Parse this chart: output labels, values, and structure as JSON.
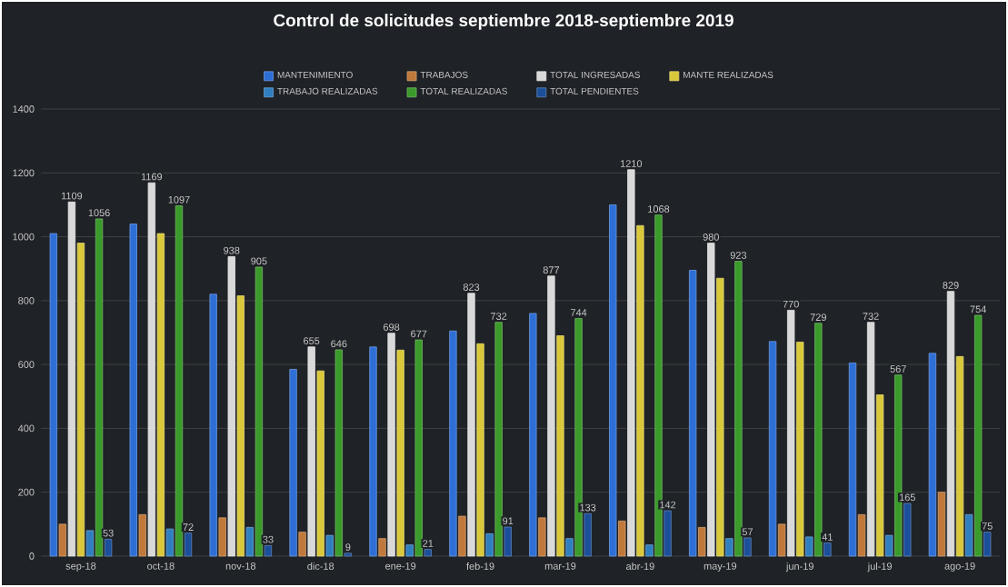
{
  "chart_data": {
    "type": "bar",
    "title": "Control de solicitudes septiembre 2018-septiembre 2019",
    "categories": [
      "sep-18",
      "oct-18",
      "nov-18",
      "dic-18",
      "ene-19",
      "feb-19",
      "mar-19",
      "abr-19",
      "may-19",
      "jun-19",
      "jul-19",
      "ago-19"
    ],
    "series": [
      {
        "name": "MANTENIMIENTO",
        "color": "#2e6fd6",
        "values": [
          1010,
          1040,
          820,
          585,
          655,
          705,
          760,
          1100,
          895,
          672,
          605,
          635
        ]
      },
      {
        "name": "TRABAJOS",
        "color": "#c0793a",
        "values": [
          100,
          130,
          120,
          75,
          55,
          125,
          120,
          110,
          90,
          100,
          130,
          200
        ]
      },
      {
        "name": "TOTAL INGRESADAS",
        "color": "#d9d9d9",
        "values": [
          1109,
          1169,
          938,
          655,
          698,
          823,
          877,
          1210,
          980,
          770,
          732,
          829
        ],
        "value_labels": [
          "1109",
          "1169",
          "938",
          "655",
          "698",
          "823",
          "877",
          "1210",
          "980",
          "770",
          "732",
          "829"
        ]
      },
      {
        "name": "MANTE REALIZADAS",
        "color": "#d9c83a",
        "values": [
          980,
          1010,
          815,
          580,
          645,
          665,
          690,
          1035,
          870,
          670,
          505,
          625
        ]
      },
      {
        "name": "TRABAJO REALIZADAS",
        "color": "#2f7fc0",
        "values": [
          80,
          85,
          90,
          65,
          35,
          70,
          55,
          35,
          55,
          60,
          65,
          130
        ]
      },
      {
        "name": "TOTAL REALIZADAS",
        "color": "#3a9a2a",
        "values": [
          1056,
          1097,
          905,
          646,
          677,
          732,
          744,
          1068,
          923,
          729,
          567,
          754
        ],
        "value_labels": [
          "1056",
          "1097",
          "905",
          "646",
          "677",
          "732",
          "744",
          "1068",
          "923",
          "729",
          "567",
          "754"
        ]
      },
      {
        "name": "TOTAL PENDIENTES",
        "color": "#1c4f9a",
        "values": [
          53,
          72,
          33,
          9,
          21,
          91,
          133,
          142,
          57,
          41,
          165,
          75
        ],
        "value_labels": [
          "53",
          "72",
          "33",
          "9",
          "21",
          "91",
          "133",
          "142",
          "57",
          "41",
          "165",
          "75"
        ]
      }
    ],
    "ylim": [
      0,
      1400
    ],
    "yticks": [
      0,
      200,
      400,
      600,
      800,
      1000,
      1200,
      1400
    ],
    "grid": "y",
    "legend": "top"
  }
}
